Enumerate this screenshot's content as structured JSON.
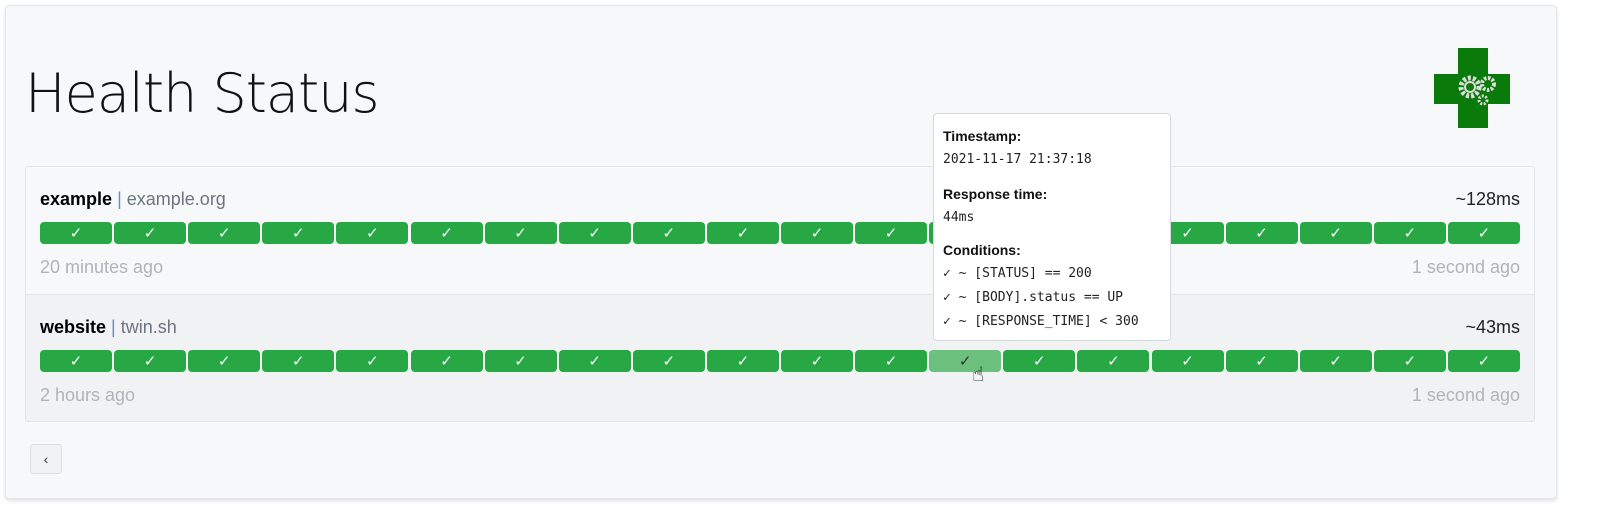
{
  "title": "Health Status",
  "services": [
    {
      "name": "example",
      "host": "example.org",
      "response_time": "~128ms",
      "oldest": "20 minutes ago",
      "newest": "1 second ago",
      "results": [
        "success",
        "success",
        "success",
        "success",
        "success",
        "success",
        "success",
        "success",
        "success",
        "success",
        "success",
        "success",
        "success",
        "success",
        "success",
        "success",
        "success",
        "success",
        "success",
        "success"
      ]
    },
    {
      "name": "website",
      "host": "twin.sh",
      "response_time": "~43ms",
      "oldest": "2 hours ago",
      "newest": "1 second ago",
      "results": [
        "success",
        "success",
        "success",
        "success",
        "success",
        "success",
        "success",
        "success",
        "success",
        "success",
        "success",
        "success",
        "success",
        "success",
        "success",
        "success",
        "success",
        "success",
        "success",
        "success"
      ]
    }
  ],
  "check_mark": "✓",
  "separator": "|",
  "tooltip": {
    "timestamp_label": "Timestamp:",
    "timestamp": "2021-11-17 21:37:18",
    "response_label": "Response time:",
    "response": "44ms",
    "conditions_label": "Conditions:",
    "conditions": [
      "✓ ~ [STATUS] == 200",
      "✓ ~ [BODY].status == UP",
      "✓ ~ [RESPONSE_TIME] < 300"
    ]
  },
  "back_label": "‹",
  "colors": {
    "success": "#28a745",
    "hover": "#6cc07e",
    "logo": "#0a7a0a"
  }
}
